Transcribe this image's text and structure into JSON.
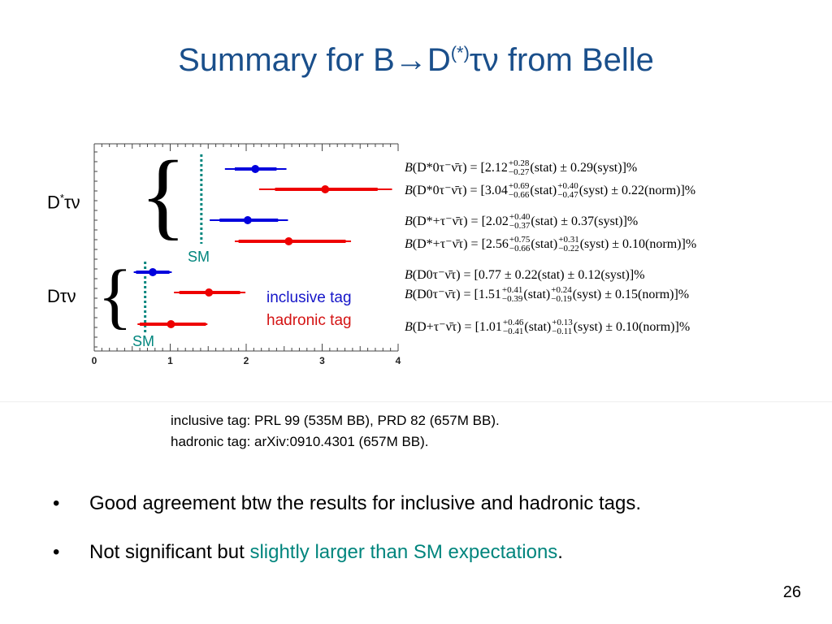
{
  "title": {
    "pre": "Summary for B→D",
    "sup": "(*)",
    "post": "τν from Belle"
  },
  "labels": {
    "dstar": {
      "main": "D",
      "sup": "*",
      "rest": "τν"
    },
    "d": "Dτν",
    "sm": "SM"
  },
  "legend": {
    "inclusive": "inclusive tag",
    "hadronic": "hadronic tag"
  },
  "chart_data": {
    "type": "scatter",
    "xlim": [
      0,
      4
    ],
    "x_ticks": [
      "0",
      "1",
      "2",
      "3",
      "4"
    ],
    "sm_lines": [
      {
        "label": "SM",
        "x": 1.41
      },
      {
        "label": "SM",
        "x": 0.67
      }
    ],
    "points": [
      {
        "group": "D*τν",
        "tag": "inclusive tag",
        "value": 2.12,
        "stat": [
          0.27,
          0.28
        ],
        "total": [
          0.4,
          0.41
        ]
      },
      {
        "group": "D*τν",
        "tag": "hadronic tag",
        "value": 3.04,
        "stat": [
          0.66,
          0.69
        ],
        "total": [
          0.87,
          0.88
        ]
      },
      {
        "group": "D*τν",
        "tag": "inclusive tag",
        "value": 2.02,
        "stat": [
          0.37,
          0.4
        ],
        "total": [
          0.5,
          0.53
        ]
      },
      {
        "group": "D*τν",
        "tag": "hadronic tag",
        "value": 2.56,
        "stat": [
          0.66,
          0.75
        ],
        "total": [
          0.71,
          0.82
        ]
      },
      {
        "group": "Dτν",
        "tag": "inclusive tag",
        "value": 0.77,
        "stat": [
          0.22,
          0.22
        ],
        "total": [
          0.25,
          0.25
        ]
      },
      {
        "group": "Dτν",
        "tag": "hadronic tag",
        "value": 1.51,
        "stat": [
          0.39,
          0.41
        ],
        "total": [
          0.46,
          0.48
        ]
      },
      {
        "group": "Dτν",
        "tag": "hadronic tag",
        "value": 1.01,
        "stat": [
          0.41,
          0.46
        ],
        "total": [
          0.44,
          0.48
        ]
      }
    ],
    "colors": {
      "inclusive tag": "#0000dd",
      "hadronic tag": "#ee0000",
      "sm": "#00857d"
    }
  },
  "formulas": [
    {
      "lhs": "(D*0τ⁻ν̄τ) = [2.12",
      "up": "+0.28",
      "dn": "−0.27",
      "mid": "(stat) ± 0.29(syst)]%"
    },
    {
      "lhs": "(D*0τ⁻ν̄τ) = [3.04",
      "up": "+0.69",
      "dn": "−0.66",
      "mid": "(stat)",
      "up2": "+0.40",
      "dn2": "−0.47",
      "tail": "(syst) ± 0.22(norm)]%"
    },
    {
      "lhs": "(D*+τ⁻ν̄τ) = [2.02",
      "up": "+0.40",
      "dn": "−0.37",
      "mid": "(stat) ± 0.37(syst)]%"
    },
    {
      "lhs": "(D*+τ⁻ν̄τ) = [2.56",
      "up": "+0.75",
      "dn": "−0.66",
      "mid": "(stat)",
      "up2": "+0.31",
      "dn2": "−0.22",
      "tail": "(syst) ± 0.10(norm)]%"
    },
    {
      "lhs": "(D0τ⁻ν̄τ) = [0.77 ± 0.22(stat) ± 0.12(syst)]%"
    },
    {
      "lhs": "(D0τ⁻ν̄τ) = [1.51",
      "up": "+0.41",
      "dn": "−0.39",
      "mid": "(stat)",
      "up2": "+0.24",
      "dn2": "−0.19",
      "tail": "(syst) ± 0.15(norm)]%"
    },
    {
      "lhs": "(D+τ⁻ν̄τ) = [1.01",
      "up": "+0.46",
      "dn": "−0.41",
      "mid": "(stat)",
      "up2": "+0.13",
      "dn2": "−0.11",
      "tail": "(syst) ± 0.10(norm)]%"
    }
  ],
  "refs": {
    "line1": "inclusive tag: PRL 99 (535M BB), PRD 82 (657M BB).",
    "line2": "hadronic tag: arXiv:0910.4301 (657M BB)."
  },
  "bullets": {
    "dot": "•",
    "b1": "Good agreement btw the results for inclusive and hadronic tags.",
    "b2_pre": "Not significant but ",
    "b2_hl": "slightly larger than SM expectations",
    "b2_post": "."
  },
  "page_number": "26"
}
